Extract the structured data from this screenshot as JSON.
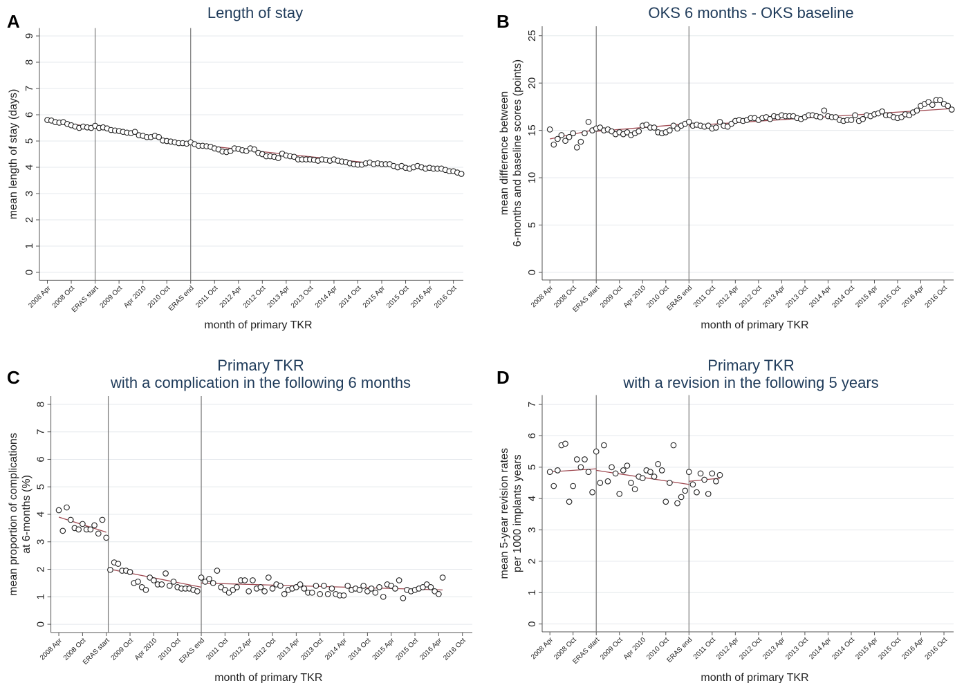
{
  "chart_data": [
    {
      "type": "scatter",
      "panel": "A",
      "title": "Length of stay",
      "xlabel": "month of primary TKR",
      "ylabel": [
        "mean length of stay (days)"
      ],
      "xlim": [
        -2,
        104.5
      ],
      "ylim": [
        -0.3,
        9.3
      ],
      "yticks": [
        0,
        1,
        2,
        3,
        4,
        5,
        6,
        7,
        8,
        9
      ],
      "grid": true,
      "vlines": [
        12,
        36
      ],
      "xticks": [
        {
          "value": 0,
          "label": "2008 Apr"
        },
        {
          "value": 6,
          "label": "2008 Oct"
        },
        {
          "value": 12,
          "label": "ERAS start"
        },
        {
          "value": 18,
          "label": "2009 Oct"
        },
        {
          "value": 24,
          "label": "Apr 2010"
        },
        {
          "value": 30,
          "label": "2010 Oct"
        },
        {
          "value": 36,
          "label": "ERAS end"
        },
        {
          "value": 42,
          "label": "2011 Oct"
        },
        {
          "value": 48,
          "label": "2012 Apr"
        },
        {
          "value": 54,
          "label": "2012 Oct"
        },
        {
          "value": 60,
          "label": "2013 Apr"
        },
        {
          "value": 66,
          "label": "2013 Oct"
        },
        {
          "value": 72,
          "label": "2014 Apr"
        },
        {
          "value": 78,
          "label": "2014 Oct"
        },
        {
          "value": 84,
          "label": "2015 Apr"
        },
        {
          "value": 90,
          "label": "2015 Oct"
        },
        {
          "value": 96,
          "label": "2016 Apr"
        },
        {
          "value": 102,
          "label": "2016 Oct"
        }
      ],
      "x": [
        0,
        1,
        2,
        3,
        4,
        5,
        6,
        7,
        8,
        9,
        10,
        11,
        12,
        13,
        14,
        15,
        16,
        17,
        18,
        19,
        20,
        21,
        22,
        23,
        24,
        25,
        26,
        27,
        28,
        29,
        30,
        31,
        32,
        33,
        34,
        35,
        36,
        37,
        38,
        39,
        40,
        41,
        42,
        43,
        44,
        45,
        46,
        47,
        48,
        49,
        50,
        51,
        52,
        53,
        54,
        55,
        56,
        57,
        58,
        59,
        60,
        61,
        62,
        63,
        64,
        65,
        66,
        67,
        68,
        69,
        70,
        71,
        72,
        73,
        74,
        75,
        76,
        77,
        78,
        79,
        80,
        81,
        82,
        83,
        84,
        85,
        86,
        87,
        88,
        89,
        90,
        91,
        92,
        93,
        94,
        95,
        96,
        97,
        98,
        99,
        100,
        101,
        102,
        103,
        104
      ],
      "series": [
        {
          "color": "#222222",
          "values": [
            5.8,
            5.78,
            5.72,
            5.7,
            5.72,
            5.65,
            5.6,
            5.55,
            5.5,
            5.55,
            5.52,
            5.5,
            5.58,
            5.5,
            5.52,
            5.48,
            5.42,
            5.4,
            5.38,
            5.35,
            5.32,
            5.3,
            5.35,
            5.22,
            5.2,
            5.15,
            5.15,
            5.2,
            5.15,
            5.02,
            5.0,
            4.98,
            4.95,
            4.92,
            4.92,
            4.9,
            4.95,
            4.88,
            4.82,
            4.82,
            4.8,
            4.78,
            4.72,
            4.68,
            4.6,
            4.58,
            4.62,
            4.72,
            4.7,
            4.65,
            4.62,
            4.72,
            4.68,
            4.55,
            4.5,
            4.42,
            4.42,
            4.4,
            4.35,
            4.52,
            4.45,
            4.42,
            4.4,
            4.3,
            4.3,
            4.3,
            4.3,
            4.28,
            4.25,
            4.3,
            4.28,
            4.25,
            4.3,
            4.25,
            4.22,
            4.2,
            4.15,
            4.12,
            4.1,
            4.1,
            4.15,
            4.18,
            4.12,
            4.15,
            4.12,
            4.12,
            4.12,
            4.05,
            4.0,
            4.05,
            3.98,
            3.95,
            4.0,
            4.05,
            4.0,
            3.95,
            3.98,
            3.95,
            3.95,
            3.95,
            3.9,
            3.85,
            3.85,
            3.8,
            3.75
          ]
        }
      ],
      "fit": {
        "color": "#a04a52",
        "x": [
          0,
          12,
          12,
          12,
          36,
          36,
          36,
          104
        ],
        "values": [
          5.78,
          5.52,
          null,
          5.52,
          4.92,
          null,
          4.88,
          3.8
        ]
      }
    },
    {
      "type": "scatter",
      "panel": "B",
      "title": "OKS 6 months - OKS baseline",
      "xlabel": "month of primary TKR",
      "ylabel": [
        "mean difference between",
        "6-months and baseline scores (points)"
      ],
      "xlim": [
        -2,
        104.5
      ],
      "ylim": [
        -0.8,
        26
      ],
      "yticks": [
        0,
        5,
        10,
        15,
        20,
        25
      ],
      "grid": true,
      "vlines": [
        12,
        36
      ],
      "xticks": [
        {
          "value": 0,
          "label": "2008 Apr"
        },
        {
          "value": 6,
          "label": "2008 Oct"
        },
        {
          "value": 12,
          "label": "ERAS start"
        },
        {
          "value": 18,
          "label": "2009 Oct"
        },
        {
          "value": 24,
          "label": "Apr 2010"
        },
        {
          "value": 30,
          "label": "2010 Oct"
        },
        {
          "value": 36,
          "label": "ERAS end"
        },
        {
          "value": 42,
          "label": "2011 Oct"
        },
        {
          "value": 48,
          "label": "2012 Apr"
        },
        {
          "value": 54,
          "label": "2012 Oct"
        },
        {
          "value": 60,
          "label": "2013 Apr"
        },
        {
          "value": 66,
          "label": "2013 Oct"
        },
        {
          "value": 72,
          "label": "2014 Apr"
        },
        {
          "value": 78,
          "label": "2014 Oct"
        },
        {
          "value": 84,
          "label": "2015 Apr"
        },
        {
          "value": 90,
          "label": "2015 Oct"
        },
        {
          "value": 96,
          "label": "2016 Apr"
        },
        {
          "value": 102,
          "label": "2016 Oct"
        }
      ],
      "x": [
        0,
        1,
        2,
        3,
        4,
        5,
        6,
        7,
        8,
        9,
        10,
        11,
        12,
        13,
        14,
        15,
        16,
        17,
        18,
        19,
        20,
        21,
        22,
        23,
        24,
        25,
        26,
        27,
        28,
        29,
        30,
        31,
        32,
        33,
        34,
        35,
        36,
        37,
        38,
        39,
        40,
        41,
        42,
        43,
        44,
        45,
        46,
        47,
        48,
        49,
        50,
        51,
        52,
        53,
        54,
        55,
        56,
        57,
        58,
        59,
        60,
        61,
        62,
        63,
        64,
        65,
        66,
        67,
        68,
        69,
        70,
        71,
        72,
        73,
        74,
        75,
        76,
        77,
        78,
        79,
        80,
        81,
        82,
        83,
        84,
        85,
        86,
        87,
        88,
        89,
        90,
        91,
        92,
        93,
        94,
        95,
        96,
        97,
        98,
        99,
        100,
        101,
        102,
        103,
        104
      ],
      "series": [
        {
          "color": "#222222",
          "values": [
            15.1,
            13.5,
            14.1,
            14.5,
            13.9,
            14.3,
            14.7,
            13.2,
            13.8,
            14.7,
            15.9,
            15.0,
            15.2,
            15.3,
            15.0,
            15.1,
            14.9,
            14.6,
            14.8,
            14.6,
            14.8,
            14.5,
            14.7,
            14.9,
            15.5,
            15.6,
            15.3,
            15.3,
            14.8,
            14.7,
            14.8,
            15.0,
            15.5,
            15.2,
            15.5,
            15.7,
            15.9,
            15.5,
            15.6,
            15.5,
            15.4,
            15.5,
            15.2,
            15.3,
            15.9,
            15.5,
            15.4,
            15.7,
            16.0,
            16.1,
            16.0,
            16.1,
            16.3,
            16.3,
            16.1,
            16.3,
            16.4,
            16.2,
            16.5,
            16.4,
            16.6,
            16.5,
            16.5,
            16.5,
            16.3,
            16.2,
            16.4,
            16.6,
            16.6,
            16.5,
            16.4,
            17.1,
            16.5,
            16.4,
            16.4,
            16.1,
            16.0,
            16.1,
            16.1,
            16.6,
            16.0,
            16.2,
            16.6,
            16.5,
            16.7,
            16.8,
            17.0,
            16.6,
            16.6,
            16.4,
            16.3,
            16.4,
            16.7,
            16.6,
            16.9,
            17.1,
            17.6,
            17.8,
            18.0,
            17.7,
            18.2,
            18.2,
            17.8,
            17.6,
            17.2
          ]
        }
      ],
      "fit": {
        "color": "#a04a52",
        "x": [
          0,
          12,
          12,
          12,
          36,
          36,
          36,
          104
        ],
        "values": [
          14.1,
          15.1,
          null,
          14.9,
          15.7,
          null,
          15.5,
          17.3
        ]
      }
    },
    {
      "type": "scatter",
      "panel": "C",
      "title": "Primary TKR",
      "subtitle": "with a complication in the following 6 months",
      "xlabel": "month of primary TKR",
      "ylabel": [
        "mean proportion of complications",
        "at 6-months (%)"
      ],
      "xlim": [
        -2,
        104.5
      ],
      "ylim": [
        -0.3,
        8.3
      ],
      "yticks": [
        0,
        1,
        2,
        3,
        4,
        5,
        6,
        7,
        8
      ],
      "grid": true,
      "vlines": [
        12.5,
        36
      ],
      "xticks": [
        {
          "value": 0,
          "label": "2008 Apr"
        },
        {
          "value": 6,
          "label": "2008 Oct"
        },
        {
          "value": 12,
          "label": "ERAS start"
        },
        {
          "value": 18,
          "label": "2009 Oct"
        },
        {
          "value": 24,
          "label": "Apr 2010"
        },
        {
          "value": 30,
          "label": "2010 Oct"
        },
        {
          "value": 36,
          "label": "ERAS end"
        },
        {
          "value": 42,
          "label": "2011 Oct"
        },
        {
          "value": 48,
          "label": "2012 Apr"
        },
        {
          "value": 54,
          "label": "2012 Oct"
        },
        {
          "value": 60,
          "label": "2013 Apr"
        },
        {
          "value": 66,
          "label": "2013 Oct"
        },
        {
          "value": 72,
          "label": "2014 Apr"
        },
        {
          "value": 78,
          "label": "2014 Oct"
        },
        {
          "value": 84,
          "label": "2015 Apr"
        },
        {
          "value": 90,
          "label": "2015 Oct"
        },
        {
          "value": 96,
          "label": "2016 Apr"
        },
        {
          "value": 102,
          "label": "2016 Oct"
        }
      ],
      "x": [
        0,
        1,
        2,
        3,
        4,
        5,
        6,
        7,
        8,
        9,
        10,
        11,
        12,
        13,
        14,
        15,
        16,
        17,
        18,
        19,
        20,
        21,
        22,
        23,
        24,
        25,
        26,
        27,
        28,
        29,
        30,
        31,
        32,
        33,
        34,
        35,
        36,
        37,
        38,
        39,
        40,
        41,
        42,
        43,
        44,
        45,
        46,
        47,
        48,
        49,
        50,
        51,
        52,
        53,
        54,
        55,
        56,
        57,
        58,
        59,
        60,
        61,
        62,
        63,
        64,
        65,
        66,
        67,
        68,
        69,
        70,
        71,
        72,
        73,
        74,
        75,
        76,
        77,
        78,
        79,
        80,
        81,
        82,
        83,
        84,
        85,
        86,
        87,
        88,
        89,
        90,
        91,
        92,
        93,
        94,
        95,
        96,
        97
      ],
      "series": [
        {
          "color": "#222222",
          "values": [
            4.15,
            3.4,
            4.25,
            3.8,
            3.5,
            3.45,
            3.65,
            3.45,
            3.45,
            3.6,
            3.3,
            3.8,
            3.15,
            1.98,
            2.25,
            2.2,
            1.95,
            1.95,
            1.9,
            1.5,
            1.55,
            1.35,
            1.25,
            1.7,
            1.6,
            1.45,
            1.45,
            1.85,
            1.4,
            1.55,
            1.35,
            1.3,
            1.3,
            1.3,
            1.25,
            1.2,
            1.7,
            1.55,
            1.65,
            1.5,
            1.95,
            1.35,
            1.25,
            1.15,
            1.25,
            1.35,
            1.6,
            1.6,
            1.2,
            1.6,
            1.3,
            1.35,
            1.2,
            1.7,
            1.3,
            1.45,
            1.4,
            1.1,
            1.25,
            1.3,
            1.35,
            1.45,
            1.3,
            1.15,
            1.15,
            1.4,
            1.1,
            1.4,
            1.1,
            1.3,
            1.1,
            1.05,
            1.05,
            1.4,
            1.25,
            1.3,
            1.25,
            1.4,
            1.2,
            1.3,
            1.15,
            1.35,
            1.0,
            1.45,
            1.4,
            1.3,
            1.6,
            0.95,
            1.25,
            1.2,
            1.25,
            1.3,
            1.35,
            1.45,
            1.35,
            1.2,
            1.1,
            1.7
          ]
        }
      ],
      "fit": {
        "color": "#a04a52",
        "x": [
          0,
          12,
          12,
          13,
          36,
          36,
          36,
          97
        ],
        "values": [
          3.9,
          3.35,
          null,
          2.0,
          1.35,
          null,
          1.5,
          1.25
        ]
      }
    },
    {
      "type": "scatter",
      "panel": "D",
      "title": "Primary TKR",
      "subtitle": "with a revision in the following 5 years",
      "xlabel": "month of primary TKR",
      "ylabel": [
        "mean 5-year revision rates",
        "per 1000 implants years"
      ],
      "xlim": [
        -2,
        104.5
      ],
      "ylim": [
        -0.25,
        7.3
      ],
      "yticks": [
        0,
        1,
        2,
        3,
        4,
        5,
        6,
        7
      ],
      "grid": true,
      "vlines": [
        12,
        36
      ],
      "xticks": [
        {
          "value": 0,
          "label": "2008 Apr"
        },
        {
          "value": 6,
          "label": "2008 Oct"
        },
        {
          "value": 12,
          "label": "ERAS start"
        },
        {
          "value": 18,
          "label": "2009 Oct"
        },
        {
          "value": 24,
          "label": "Apr 2010"
        },
        {
          "value": 30,
          "label": "2010 Oct"
        },
        {
          "value": 36,
          "label": "ERAS end"
        },
        {
          "value": 42,
          "label": "2011 Oct"
        },
        {
          "value": 48,
          "label": "2012 Apr"
        },
        {
          "value": 54,
          "label": "2012 Oct"
        },
        {
          "value": 60,
          "label": "2013 Apr"
        },
        {
          "value": 66,
          "label": "2013 Oct"
        },
        {
          "value": 72,
          "label": "2014 Apr"
        },
        {
          "value": 78,
          "label": "2014 Oct"
        },
        {
          "value": 84,
          "label": "2015 Apr"
        },
        {
          "value": 90,
          "label": "2015 Oct"
        },
        {
          "value": 96,
          "label": "2016 Apr"
        },
        {
          "value": 102,
          "label": "2016 Oct"
        }
      ],
      "x": [
        0,
        1,
        2,
        3,
        4,
        5,
        6,
        7,
        8,
        9,
        10,
        11,
        12,
        13,
        14,
        15,
        16,
        17,
        18,
        19,
        20,
        21,
        22,
        23,
        24,
        25,
        26,
        27,
        28,
        29,
        30,
        31,
        32,
        33,
        34,
        35,
        36,
        37,
        38,
        39,
        40,
        41,
        42,
        43,
        44
      ],
      "series": [
        {
          "color": "#222222",
          "values": [
            4.85,
            4.4,
            4.9,
            5.7,
            5.75,
            3.9,
            4.4,
            5.25,
            5.0,
            5.25,
            4.85,
            4.2,
            5.5,
            4.5,
            5.7,
            4.55,
            5.0,
            4.8,
            4.15,
            4.9,
            5.05,
            4.5,
            4.3,
            4.7,
            4.65,
            4.9,
            4.85,
            4.7,
            5.1,
            4.9,
            3.9,
            4.5,
            5.7,
            3.85,
            4.05,
            4.25,
            4.85,
            4.45,
            4.2,
            4.8,
            4.6,
            4.15,
            4.8,
            4.55,
            4.75
          ]
        }
      ],
      "fit": {
        "color": "#a04a52",
        "x": [
          0,
          12,
          12,
          12,
          36,
          36,
          36,
          44
        ],
        "values": [
          4.85,
          4.95,
          null,
          4.9,
          4.45,
          null,
          4.55,
          4.65
        ]
      }
    }
  ]
}
